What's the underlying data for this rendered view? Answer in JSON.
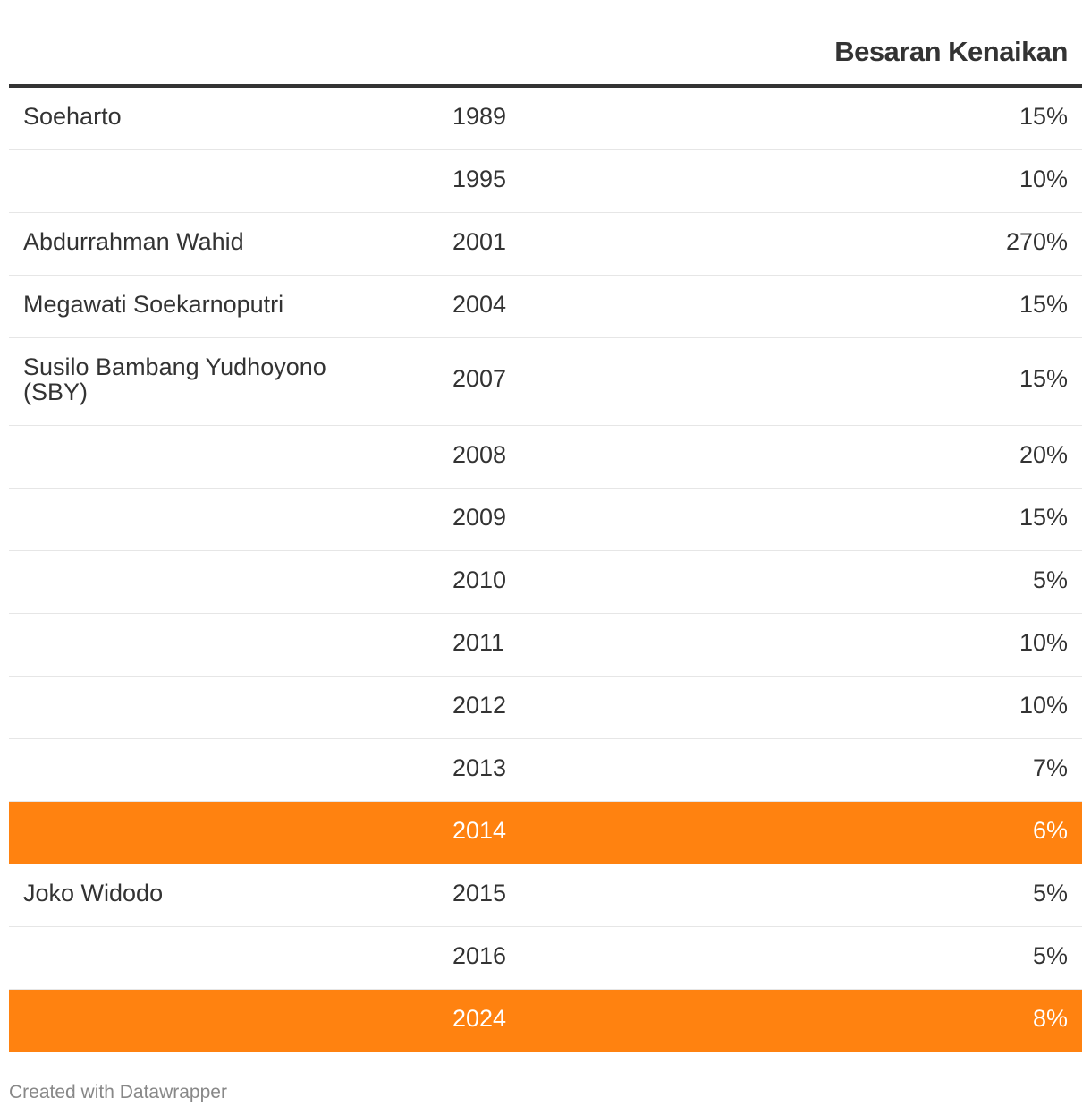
{
  "chart_data": {
    "type": "table",
    "columns": [
      "",
      "",
      "Besaran Kenaikan"
    ],
    "rows": [
      {
        "name": "Soeharto",
        "year": "1989",
        "value": "15%",
        "highlight": false
      },
      {
        "name": "",
        "year": "1995",
        "value": "10%",
        "highlight": false
      },
      {
        "name": "Abdurrahman Wahid",
        "year": "2001",
        "value": "270%",
        "highlight": false
      },
      {
        "name": "Megawati Soekarnoputri",
        "year": "2004",
        "value": "15%",
        "highlight": false
      },
      {
        "name": "Susilo Bambang Yudhoyono (SBY)",
        "year": "2007",
        "value": "15%",
        "highlight": false
      },
      {
        "name": "",
        "year": "2008",
        "value": "20%",
        "highlight": false
      },
      {
        "name": "",
        "year": "2009",
        "value": "15%",
        "highlight": false
      },
      {
        "name": "",
        "year": "2010",
        "value": "5%",
        "highlight": false
      },
      {
        "name": "",
        "year": "2011",
        "value": "10%",
        "highlight": false
      },
      {
        "name": "",
        "year": "2012",
        "value": "10%",
        "highlight": false
      },
      {
        "name": "",
        "year": "2013",
        "value": "7%",
        "highlight": false
      },
      {
        "name": "",
        "year": "2014",
        "value": "6%",
        "highlight": true
      },
      {
        "name": "Joko Widodo",
        "year": "2015",
        "value": "5%",
        "highlight": false
      },
      {
        "name": "",
        "year": "2016",
        "value": "5%",
        "highlight": false
      },
      {
        "name": "",
        "year": "2024",
        "value": "8%",
        "highlight": true
      }
    ],
    "highlight_color": "#ff8210"
  },
  "footer": {
    "credit": "Created with Datawrapper"
  }
}
